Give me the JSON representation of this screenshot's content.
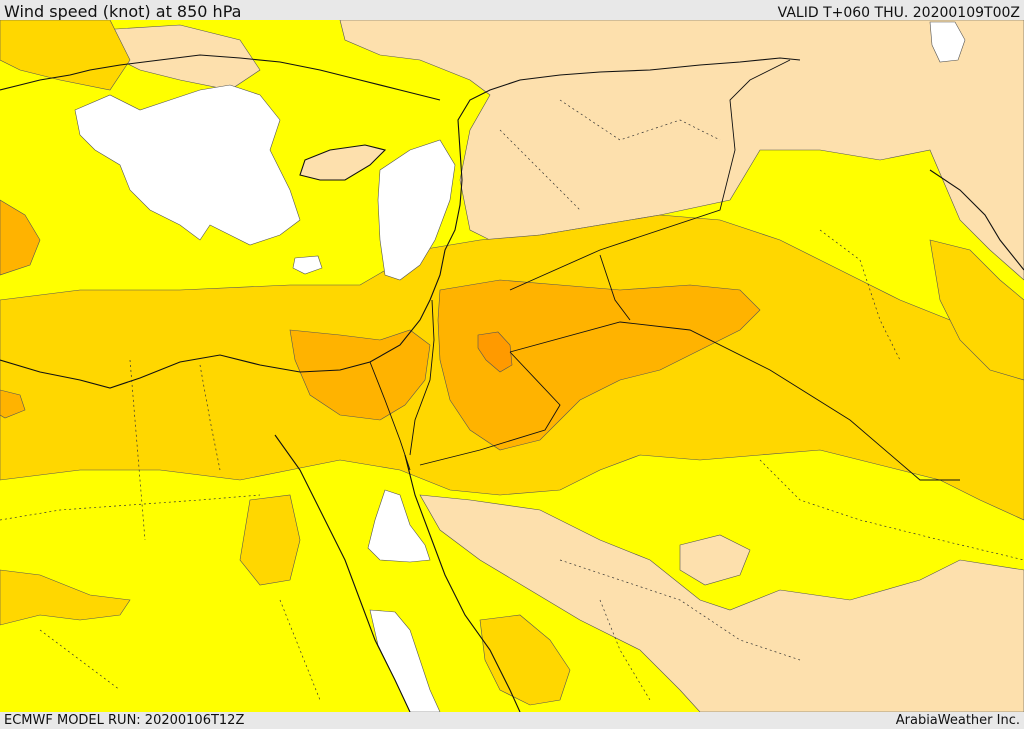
{
  "header": {
    "title": "Wind speed (knot) at 850 hPa",
    "valid": "VALID T+060 THU. 20200109T00Z"
  },
  "footer": {
    "model_run": "ECMWF MODEL RUN: 20200106T12Z",
    "credit": "ArabiaWeather Inc."
  },
  "legend_colors": {
    "calm": "#ffffff",
    "light": "#fde0ad",
    "moderate": "#ffff00",
    "fresh": "#ffd700",
    "strong": "#ffb300",
    "very_strong": "#ff9a00"
  }
}
